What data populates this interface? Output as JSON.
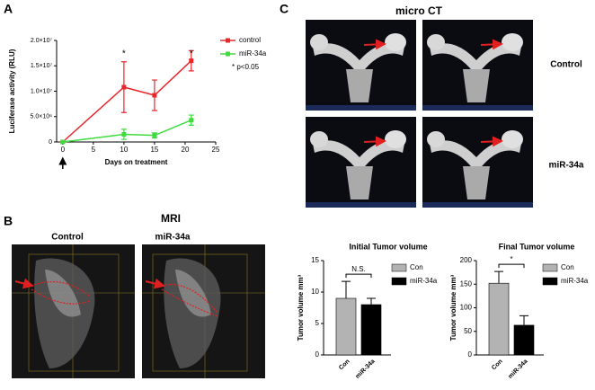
{
  "panels": {
    "a": "A",
    "b": "B",
    "c": "C",
    "mri_title": "MRI",
    "mri_control": "Control",
    "mri_mir": "miR-34a",
    "ct_title": "micro CT",
    "ct_control": "Control",
    "ct_mir": "miR-34a"
  },
  "chart_data": [
    {
      "type": "line",
      "x_label": "Days on treatment",
      "y_label": "Luciferase activity (RLU)",
      "x": [
        0,
        10,
        15,
        21
      ],
      "xlim": [
        -1,
        25
      ],
      "xticks": [
        0,
        5,
        10,
        15,
        20,
        25
      ],
      "ylim": [
        0,
        20000000
      ],
      "yticks": [
        0,
        {
          "value": 5000000,
          "label": "5.0×10⁶"
        },
        {
          "value": 10000000,
          "label": "1.0×10⁷"
        },
        {
          "value": 15000000,
          "label": "1.5×10⁷"
        },
        {
          "value": 20000000,
          "label": "2.0×10⁷"
        }
      ],
      "series": [
        {
          "name": "control",
          "color": "#e8262b",
          "values": [
            0,
            10800000,
            9200000,
            16000000
          ],
          "errors": [
            0,
            5000000,
            3000000,
            2000000
          ]
        },
        {
          "name": "miR-34a",
          "color": "#3edc3e",
          "values": [
            0,
            1500000,
            1300000,
            4300000
          ],
          "errors": [
            0,
            1000000,
            500000,
            1000000
          ]
        }
      ],
      "significance": [
        "*",
        "*"
      ],
      "note": "* p<0.05",
      "legend": "upper right"
    },
    {
      "type": "bar",
      "title": "Initial Tumor volume",
      "y_label": "Tumor volume mm³",
      "categories": [
        "Con",
        "miR-34a"
      ],
      "values": [
        9,
        8
      ],
      "errors": [
        2.7,
        1
      ],
      "colors": [
        "#b3b3b3",
        "#000000"
      ],
      "ylim": [
        0,
        15
      ],
      "yticks": [
        0,
        5,
        10,
        15
      ],
      "annotation": "N.S.",
      "legend": "upper right"
    },
    {
      "type": "bar",
      "title": "Final Tumor volume",
      "y_label": "Tumor volume mm³",
      "categories": [
        "Con",
        "miR-34a"
      ],
      "values": [
        152,
        63
      ],
      "errors": [
        25,
        20
      ],
      "colors": [
        "#b3b3b3",
        "#000000"
      ],
      "ylim": [
        0,
        200
      ],
      "yticks": [
        0,
        50,
        100,
        150,
        200
      ],
      "annotation": "*",
      "legend": "upper right"
    }
  ]
}
